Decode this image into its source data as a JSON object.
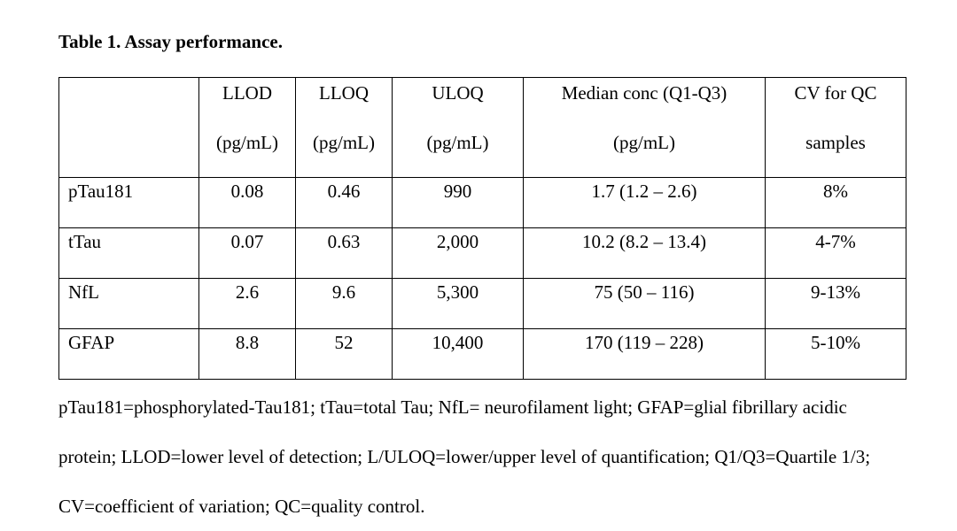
{
  "caption": "Table 1. Assay performance.",
  "table": {
    "columns": [
      {
        "line1": "",
        "line2": ""
      },
      {
        "line1": "LLOD",
        "line2": "(pg/mL)"
      },
      {
        "line1": "LLOQ",
        "line2": "(pg/mL)"
      },
      {
        "line1": "ULOQ",
        "line2": "(pg/mL)"
      },
      {
        "line1": "Median conc (Q1-Q3)",
        "line2": "(pg/mL)"
      },
      {
        "line1": "CV for QC",
        "line2": "samples"
      }
    ],
    "rows": [
      {
        "name": "pTau181",
        "llod": "0.08",
        "lloq": "0.46",
        "uloq": "990",
        "median": "1.7 (1.2 – 2.6)",
        "cv": "8%"
      },
      {
        "name": "tTau",
        "llod": "0.07",
        "lloq": "0.63",
        "uloq": "2,000",
        "median": "10.2 (8.2 – 13.4)",
        "cv": "4-7%"
      },
      {
        "name": "NfL",
        "llod": "2.6",
        "lloq": "9.6",
        "uloq": "5,300",
        "median": "75 (50 – 116)",
        "cv": "9-13%"
      },
      {
        "name": "GFAP",
        "llod": "8.8",
        "lloq": "52",
        "uloq": "10,400",
        "median": "170 (119 – 228)",
        "cv": "5-10%"
      }
    ]
  },
  "footnote": "pTau181=phosphorylated-Tau181; tTau=total Tau; NfL= neurofilament light; GFAP=glial fibrillary acidic protein; LLOD=lower level of detection; L/ULOQ=lower/upper level of quantification; Q1/Q3=Quartile 1/3; CV=coefficient of variation; QC=quality control."
}
